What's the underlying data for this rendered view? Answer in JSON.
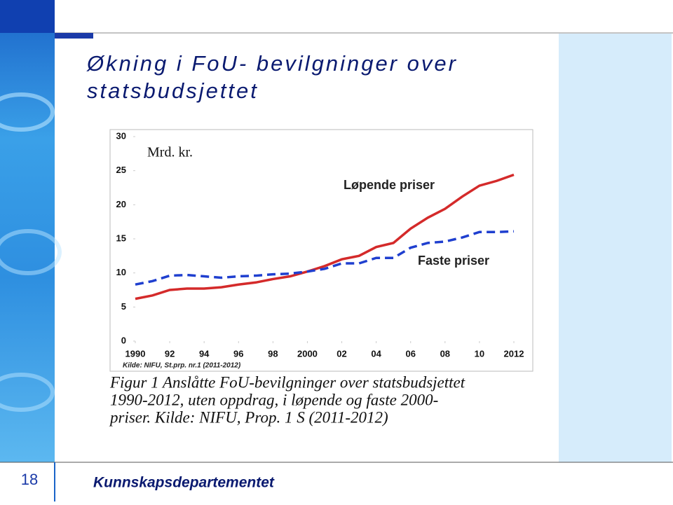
{
  "slide": {
    "title_lines": [
      "Økning i FoU- bevilgninger over",
      "statsbudsjettet"
    ],
    "page_number": "18",
    "footer": "Kunnskapsdepartementet"
  },
  "chart_data": {
    "type": "line",
    "y_label": "Mrd. kr.",
    "source": "Kilde: NIFU, St.prp. nr.1 (2011-2012)",
    "caption_lines": [
      "Figur 1  Anslåtte FoU-bevilgninger over statsbudsjettet",
      "1990-2012, uten oppdrag, i løpende og faste 2000-",
      "priser. Kilde: NIFU, Prop. 1 S (2011-2012)"
    ],
    "x": [
      1990,
      1991,
      1992,
      1993,
      1994,
      1995,
      1996,
      1997,
      1998,
      1999,
      2000,
      2001,
      2002,
      2003,
      2004,
      2005,
      2006,
      2007,
      2008,
      2009,
      2010,
      2011,
      2012
    ],
    "series": [
      {
        "name": "Løpende priser",
        "color": "#d42a2a",
        "line_style": "solid",
        "values": [
          6.2,
          6.7,
          7.5,
          7.7,
          7.7,
          7.9,
          8.3,
          8.6,
          9.1,
          9.5,
          10.2,
          11.0,
          12.0,
          12.5,
          13.8,
          14.4,
          16.5,
          18.1,
          19.4,
          21.2,
          22.8,
          23.5,
          24.4
        ]
      },
      {
        "name": "Faste priser",
        "color": "#1f3fcf",
        "line_style": "dashed",
        "values": [
          8.3,
          8.8,
          9.6,
          9.7,
          9.5,
          9.3,
          9.5,
          9.6,
          9.8,
          9.9,
          10.2,
          10.6,
          11.4,
          11.4,
          12.2,
          12.2,
          13.7,
          14.4,
          14.6,
          15.2,
          16.0,
          16.0,
          16.1
        ]
      }
    ],
    "xlim": [
      1990,
      2012
    ],
    "xticks": [
      1990,
      {
        "value": 1992,
        "label": "92"
      },
      {
        "value": 1994,
        "label": "94"
      },
      {
        "value": 1996,
        "label": "96"
      },
      {
        "value": 1998,
        "label": "98"
      },
      2000,
      {
        "value": 2002,
        "label": "02"
      },
      {
        "value": 2004,
        "label": "04"
      },
      {
        "value": 2006,
        "label": "06"
      },
      {
        "value": 2008,
        "label": "08"
      },
      {
        "value": 2010,
        "label": "10"
      },
      2012
    ],
    "ylim": [
      0,
      30
    ],
    "yticks": [
      0,
      5,
      10,
      15,
      20,
      25,
      30
    ],
    "grid": false
  }
}
